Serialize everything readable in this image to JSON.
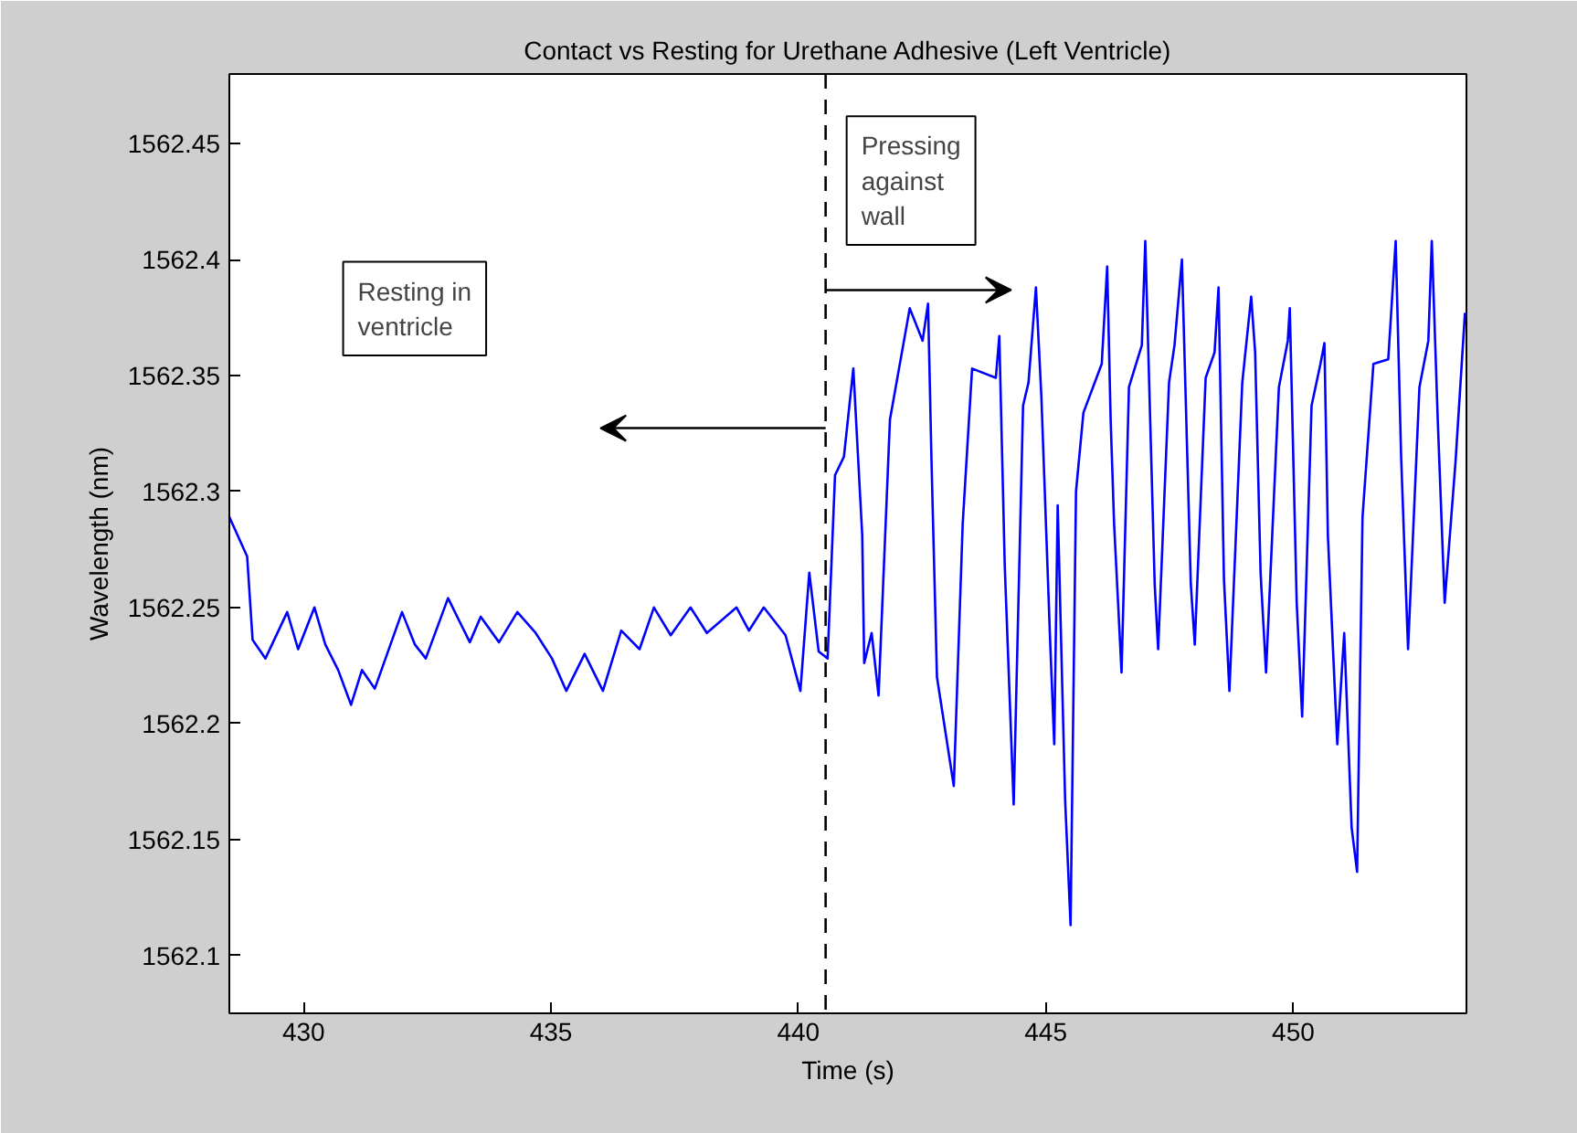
{
  "chart_data": {
    "type": "line",
    "title": "Contact vs Resting for Urethane Adhesive (Left Ventricle)",
    "xlabel": "Time (s)",
    "ylabel": "Wavelength (nm)",
    "x": [
      428.5,
      428.86,
      428.97,
      429.23,
      429.67,
      429.89,
      430.22,
      430.44,
      430.7,
      430.96,
      431.18,
      431.44,
      431.99,
      432.25,
      432.47,
      432.92,
      433.36,
      433.58,
      433.95,
      434.32,
      434.69,
      435.02,
      435.31,
      435.68,
      436.05,
      436.42,
      436.79,
      437.08,
      437.42,
      437.82,
      438.15,
      438.75,
      439.0,
      439.3,
      439.74,
      440.04,
      440.22,
      440.41,
      440.59,
      440.74,
      440.92,
      441.11,
      441.29,
      441.33,
      441.48,
      441.62,
      441.85,
      442.25,
      442.51,
      442.62,
      442.69,
      442.8,
      443.14,
      443.32,
      443.51,
      443.99,
      444.06,
      444.17,
      444.35,
      444.54,
      444.65,
      444.8,
      444.91,
      445.09,
      445.17,
      445.24,
      445.39,
      445.5,
      445.61,
      445.76,
      446.13,
      446.24,
      446.31,
      446.38,
      446.46,
      446.53,
      446.68,
      446.94,
      447.01,
      447.2,
      447.27,
      447.49,
      447.6,
      447.75,
      447.93,
      448.01,
      448.23,
      448.41,
      448.49,
      448.6,
      448.71,
      448.97,
      449.15,
      449.23,
      449.34,
      449.45,
      449.71,
      449.89,
      449.93,
      450.07,
      450.18,
      450.37,
      450.55,
      450.63,
      450.7,
      450.89,
      451.03,
      451.18,
      451.29,
      451.4,
      451.62,
      451.92,
      452.07,
      452.18,
      452.32,
      452.55,
      452.73,
      452.8,
      452.92,
      453.06,
      453.28,
      453.47
    ],
    "series": [
      {
        "color": "#0000ff",
        "values": [
          1562.289,
          1562.272,
          1562.236,
          1562.228,
          1562.248,
          1562.232,
          1562.25,
          1562.234,
          1562.223,
          1562.208,
          1562.223,
          1562.215,
          1562.248,
          1562.234,
          1562.228,
          1562.254,
          1562.235,
          1562.246,
          1562.235,
          1562.248,
          1562.239,
          1562.228,
          1562.214,
          1562.23,
          1562.214,
          1562.24,
          1562.232,
          1562.25,
          1562.238,
          1562.25,
          1562.239,
          1562.25,
          1562.24,
          1562.25,
          1562.238,
          1562.214,
          1562.265,
          1562.231,
          1562.228,
          1562.307,
          1562.315,
          1562.353,
          1562.281,
          1562.226,
          1562.239,
          1562.212,
          1562.331,
          1562.379,
          1562.365,
          1562.381,
          1562.313,
          1562.22,
          1562.173,
          1562.286,
          1562.353,
          1562.349,
          1562.367,
          1562.268,
          1562.165,
          1562.337,
          1562.347,
          1562.388,
          1562.341,
          1562.234,
          1562.191,
          1562.294,
          1562.167,
          1562.113,
          1562.3,
          1562.334,
          1562.355,
          1562.397,
          1562.331,
          1562.286,
          1562.252,
          1562.222,
          1562.345,
          1562.363,
          1562.408,
          1562.26,
          1562.232,
          1562.347,
          1562.363,
          1562.4,
          1562.26,
          1562.234,
          1562.349,
          1562.36,
          1562.388,
          1562.262,
          1562.214,
          1562.347,
          1562.384,
          1562.36,
          1562.265,
          1562.222,
          1562.345,
          1562.365,
          1562.379,
          1562.252,
          1562.203,
          1562.337,
          1562.355,
          1562.364,
          1562.281,
          1562.191,
          1562.239,
          1562.155,
          1562.136,
          1562.289,
          1562.355,
          1562.357,
          1562.408,
          1562.315,
          1562.232,
          1562.345,
          1562.365,
          1562.408,
          1562.331,
          1562.252,
          1562.313,
          1562.377
        ]
      }
    ],
    "xlim": [
      428.5,
      453.5
    ],
    "ylim": [
      1562.075,
      1562.48
    ],
    "xticks": [
      430,
      435,
      440,
      445,
      450
    ],
    "yticks": [
      1562.1,
      1562.15,
      1562.2,
      1562.25,
      1562.3,
      1562.35,
      1562.4,
      1562.45
    ],
    "ref_lines": [
      {
        "axis": "x",
        "value": 440.55,
        "color": "#000000",
        "line_style": "dashed"
      }
    ],
    "annotations": [
      "Resting in ventricle",
      "Pressing against wall"
    ],
    "grid": false,
    "marker": "none",
    "line_style": "solid"
  }
}
